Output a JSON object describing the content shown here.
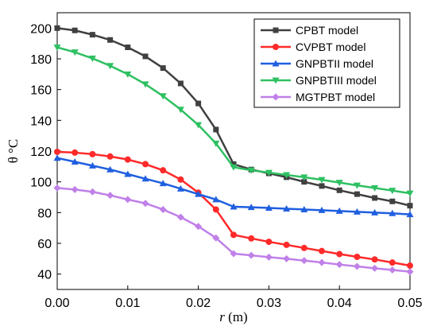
{
  "chart_data": {
    "type": "line",
    "xlabel": {
      "var": "r",
      "unit": " (m)"
    },
    "ylabel": "θ °C",
    "xlim": [
      0,
      0.05
    ],
    "ylim": [
      30,
      210
    ],
    "xticks": [
      0.0,
      0.01,
      0.02,
      0.03,
      0.04,
      0.05
    ],
    "xtick_labels": [
      "0.00",
      "0.01",
      "0.02",
      "0.03",
      "0.04",
      "0.05"
    ],
    "yticks": [
      40,
      60,
      80,
      100,
      120,
      140,
      160,
      180,
      200
    ],
    "ytick_labels": [
      "40",
      "60",
      "80",
      "100",
      "120",
      "140",
      "160",
      "180",
      "200"
    ],
    "grid": false,
    "legend_position": "top-right",
    "x": [
      0.0,
      0.0025,
      0.005,
      0.0075,
      0.01,
      0.0125,
      0.015,
      0.0175,
      0.02,
      0.0225,
      0.025,
      0.0275,
      0.03,
      0.0325,
      0.035,
      0.0375,
      0.04,
      0.0425,
      0.045,
      0.0475,
      0.05
    ],
    "series": [
      {
        "name": "CPBT model",
        "color": "#404040",
        "marker": "square",
        "values": [
          200,
          198.5,
          195.7,
          192.3,
          187.5,
          181.6,
          174.0,
          164.0,
          151.0,
          134.0,
          111.5,
          108.0,
          105.5,
          103.0,
          100.0,
          97.3,
          94.5,
          92.0,
          89.5,
          87.3,
          84.5
        ]
      },
      {
        "name": "CVPBT model",
        "color": "#ff2a2a",
        "marker": "circle",
        "values": [
          119.5,
          119.0,
          118.0,
          116.5,
          114.5,
          111.5,
          107.5,
          101.5,
          93.0,
          82.0,
          65.5,
          63.2,
          61.0,
          59.0,
          57.0,
          55.0,
          53.0,
          51.2,
          49.5,
          47.5,
          45.5
        ]
      },
      {
        "name": "GNPBTII model",
        "color": "#1f5fe0",
        "marker": "triangle-up",
        "values": [
          115.5,
          113.0,
          110.5,
          108.0,
          105.0,
          102.0,
          99.0,
          95.5,
          92.0,
          88.5,
          83.8,
          83.5,
          83.0,
          82.5,
          82.0,
          81.5,
          81.0,
          80.5,
          80.0,
          79.5,
          78.8
        ]
      },
      {
        "name": "GNPBTIII model",
        "color": "#2ec062",
        "marker": "triangle-down",
        "values": [
          187.5,
          184.3,
          180.3,
          175.5,
          170.0,
          163.5,
          155.8,
          147.0,
          137.0,
          125.0,
          109.5,
          107.5,
          106.0,
          104.5,
          103.0,
          101.3,
          99.5,
          97.7,
          96.0,
          94.3,
          92.5
        ]
      },
      {
        "name": "MGTPBT model",
        "color": "#c080e8",
        "marker": "diamond",
        "values": [
          96.0,
          95.0,
          93.5,
          91.2,
          88.5,
          86.0,
          82.0,
          77.0,
          71.0,
          63.5,
          53.3,
          52.2,
          51.0,
          50.0,
          48.8,
          47.5,
          46.2,
          45.0,
          43.8,
          42.7,
          41.5
        ]
      }
    ]
  }
}
